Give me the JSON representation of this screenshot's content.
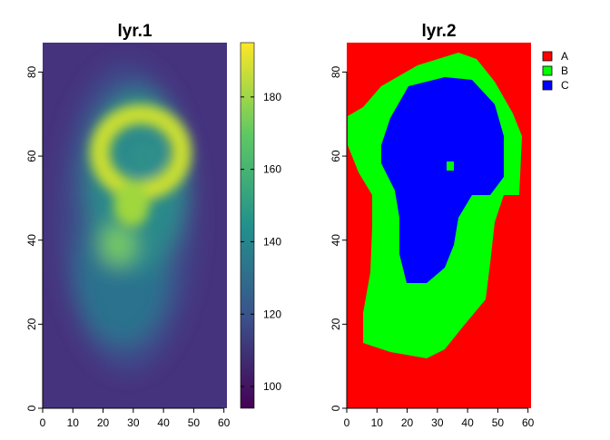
{
  "chart_data": [
    {
      "type": "raster",
      "title": "lyr.1",
      "xlim": [
        0,
        61
      ],
      "ylim": [
        0,
        87
      ],
      "xticks": [
        0,
        10,
        20,
        30,
        40,
        50,
        60
      ],
      "yticks": [
        0,
        20,
        40,
        60,
        80
      ],
      "colorbar": {
        "lim": [
          94,
          195
        ],
        "ticks": [
          100,
          120,
          140,
          160,
          180
        ],
        "colors": [
          "#440154",
          "#3b528b",
          "#21918c",
          "#5ec962",
          "#fde725"
        ]
      }
    },
    {
      "type": "categorical-raster",
      "title": "lyr.2",
      "xlim": [
        0,
        61
      ],
      "ylim": [
        0,
        87
      ],
      "xticks": [
        0,
        10,
        20,
        30,
        40,
        50,
        60
      ],
      "yticks": [
        0,
        20,
        40,
        60,
        80
      ],
      "classes": [
        {
          "name": "A",
          "color": "#ff0000"
        },
        {
          "name": "B",
          "color": "#00ff00"
        },
        {
          "name": "C",
          "color": "#0000ff"
        }
      ]
    }
  ]
}
